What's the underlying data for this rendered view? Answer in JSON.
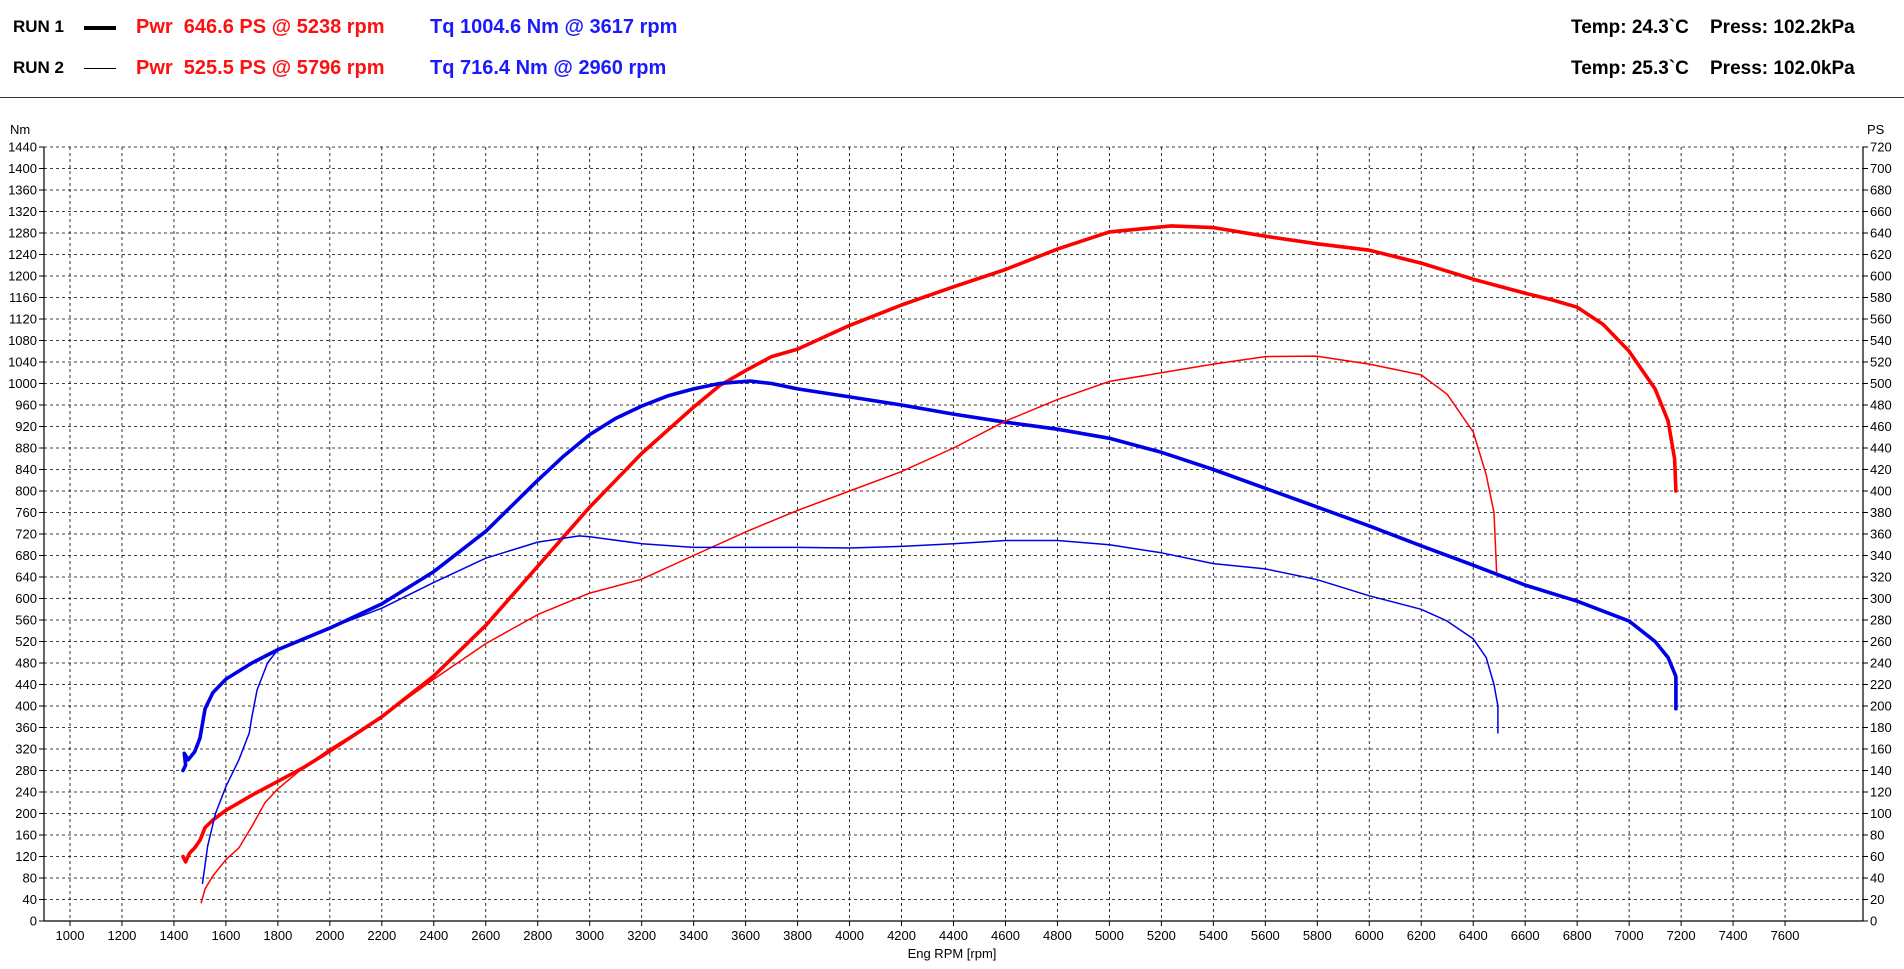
{
  "runs": [
    {
      "label": "RUN 1",
      "line": "thick",
      "power": "Pwr  646.6 PS @ 5238 rpm",
      "torque": "Tq 1004.6 Nm @ 3617 rpm",
      "temp": "Temp: 24.3`C",
      "press": "Press: 102.2kPa"
    },
    {
      "label": "RUN 2",
      "line": "thin",
      "power": "Pwr  525.5 PS @ 5796 rpm",
      "torque": "Tq 716.4 Nm @ 2960 rpm",
      "temp": "Temp: 25.3`C",
      "press": "Press: 102.0kPa"
    }
  ],
  "chart_data": {
    "type": "line",
    "xlabel": "Eng RPM [rpm]",
    "ylabel_left": "Nm",
    "ylabel_right": "PS",
    "xlim": [
      900,
      7900
    ],
    "xticks": [
      1000,
      1200,
      1400,
      1600,
      1800,
      2000,
      2200,
      2400,
      2600,
      2800,
      3000,
      3200,
      3400,
      3600,
      3800,
      4000,
      4200,
      4400,
      4600,
      4800,
      5000,
      5200,
      5400,
      5600,
      5800,
      6000,
      6200,
      6400,
      6600,
      6800,
      7000,
      7200,
      7400,
      7600
    ],
    "ylim_left": [
      0,
      1440
    ],
    "ylim_right": [
      0,
      720
    ],
    "y_step_left": 40,
    "y_step_right": 20,
    "grid": true,
    "colors": {
      "power": "#ff0000",
      "torque": "#0000e6"
    },
    "series": [
      {
        "name": "RUN 1",
        "quantity": "Pwr",
        "axis": "right",
        "width": "thick",
        "points": [
          [
            1435,
            60
          ],
          [
            1445,
            55
          ],
          [
            1460,
            63
          ],
          [
            1480,
            68
          ],
          [
            1500,
            75
          ],
          [
            1520,
            87
          ],
          [
            1550,
            94
          ],
          [
            1600,
            103
          ],
          [
            1700,
            117
          ],
          [
            1800,
            130
          ],
          [
            1900,
            143
          ],
          [
            2000,
            158
          ],
          [
            2200,
            190
          ],
          [
            2400,
            228
          ],
          [
            2600,
            275
          ],
          [
            2800,
            330
          ],
          [
            3000,
            385
          ],
          [
            3200,
            435
          ],
          [
            3400,
            478
          ],
          [
            3500,
            498
          ],
          [
            3600,
            512
          ],
          [
            3700,
            525
          ],
          [
            3800,
            532
          ],
          [
            4000,
            554
          ],
          [
            4200,
            573
          ],
          [
            4400,
            590
          ],
          [
            4600,
            606
          ],
          [
            4800,
            625
          ],
          [
            5000,
            641
          ],
          [
            5238,
            646.6
          ],
          [
            5400,
            645
          ],
          [
            5600,
            637
          ],
          [
            5800,
            630
          ],
          [
            6000,
            624
          ],
          [
            6200,
            612
          ],
          [
            6400,
            597
          ],
          [
            6600,
            584
          ],
          [
            6700,
            578
          ],
          [
            6800,
            571
          ],
          [
            6900,
            555
          ],
          [
            7000,
            530
          ],
          [
            7100,
            495
          ],
          [
            7150,
            465
          ],
          [
            7175,
            430
          ],
          [
            7180,
            400
          ]
        ]
      },
      {
        "name": "RUN 1",
        "quantity": "Tq",
        "axis": "left",
        "width": "thick",
        "points": [
          [
            1435,
            280
          ],
          [
            1445,
            290
          ],
          [
            1440,
            312
          ],
          [
            1455,
            300
          ],
          [
            1480,
            315
          ],
          [
            1500,
            340
          ],
          [
            1520,
            395
          ],
          [
            1550,
            425
          ],
          [
            1600,
            450
          ],
          [
            1700,
            480
          ],
          [
            1800,
            505
          ],
          [
            1900,
            525
          ],
          [
            2000,
            545
          ],
          [
            2200,
            590
          ],
          [
            2400,
            650
          ],
          [
            2600,
            725
          ],
          [
            2800,
            820
          ],
          [
            2900,
            865
          ],
          [
            3000,
            905
          ],
          [
            3100,
            935
          ],
          [
            3200,
            958
          ],
          [
            3300,
            977
          ],
          [
            3400,
            990
          ],
          [
            3500,
            1000
          ],
          [
            3617,
            1004.6
          ],
          [
            3700,
            1000
          ],
          [
            3800,
            990
          ],
          [
            4000,
            975
          ],
          [
            4200,
            960
          ],
          [
            4400,
            943
          ],
          [
            4600,
            928
          ],
          [
            4800,
            915
          ],
          [
            5000,
            898
          ],
          [
            5200,
            872
          ],
          [
            5400,
            840
          ],
          [
            5600,
            805
          ],
          [
            5800,
            770
          ],
          [
            6000,
            735
          ],
          [
            6200,
            698
          ],
          [
            6400,
            662
          ],
          [
            6600,
            625
          ],
          [
            6800,
            595
          ],
          [
            7000,
            558
          ],
          [
            7100,
            520
          ],
          [
            7150,
            490
          ],
          [
            7180,
            455
          ],
          [
            7180,
            395
          ]
        ]
      },
      {
        "name": "RUN 2",
        "quantity": "Pwr",
        "axis": "right",
        "width": "thin",
        "points": [
          [
            1505,
            17
          ],
          [
            1520,
            30
          ],
          [
            1550,
            42
          ],
          [
            1600,
            57
          ],
          [
            1650,
            68
          ],
          [
            1700,
            88
          ],
          [
            1750,
            110
          ],
          [
            1800,
            123
          ],
          [
            1900,
            143
          ],
          [
            2000,
            160
          ],
          [
            2200,
            190
          ],
          [
            2400,
            225
          ],
          [
            2600,
            258
          ],
          [
            2800,
            285
          ],
          [
            3000,
            305
          ],
          [
            3200,
            318
          ],
          [
            3400,
            340
          ],
          [
            3600,
            362
          ],
          [
            3800,
            382
          ],
          [
            4000,
            400
          ],
          [
            4200,
            418
          ],
          [
            4400,
            440
          ],
          [
            4600,
            465
          ],
          [
            4800,
            485
          ],
          [
            5000,
            502
          ],
          [
            5200,
            510
          ],
          [
            5400,
            518
          ],
          [
            5600,
            525
          ],
          [
            5796,
            525.5
          ],
          [
            6000,
            518
          ],
          [
            6200,
            508
          ],
          [
            6300,
            490
          ],
          [
            6400,
            455
          ],
          [
            6450,
            415
          ],
          [
            6480,
            380
          ],
          [
            6490,
            325
          ]
        ]
      },
      {
        "name": "RUN 2",
        "quantity": "Tq",
        "axis": "left",
        "width": "thin",
        "points": [
          [
            1510,
            70
          ],
          [
            1530,
            140
          ],
          [
            1560,
            200
          ],
          [
            1600,
            250
          ],
          [
            1650,
            300
          ],
          [
            1690,
            350
          ],
          [
            1700,
            380
          ],
          [
            1720,
            430
          ],
          [
            1760,
            480
          ],
          [
            1800,
            505
          ],
          [
            1900,
            525
          ],
          [
            2000,
            545
          ],
          [
            2200,
            582
          ],
          [
            2400,
            630
          ],
          [
            2600,
            675
          ],
          [
            2800,
            705
          ],
          [
            2960,
            716.4
          ],
          [
            3000,
            715
          ],
          [
            3200,
            702
          ],
          [
            3400,
            695
          ],
          [
            3600,
            695
          ],
          [
            3800,
            695
          ],
          [
            4000,
            694
          ],
          [
            4200,
            697
          ],
          [
            4400,
            702
          ],
          [
            4600,
            708
          ],
          [
            4800,
            708
          ],
          [
            5000,
            700
          ],
          [
            5200,
            685
          ],
          [
            5400,
            665
          ],
          [
            5600,
            655
          ],
          [
            5800,
            635
          ],
          [
            6000,
            605
          ],
          [
            6200,
            580
          ],
          [
            6300,
            558
          ],
          [
            6400,
            525
          ],
          [
            6450,
            490
          ],
          [
            6480,
            440
          ],
          [
            6495,
            400
          ],
          [
            6495,
            350
          ]
        ]
      }
    ]
  }
}
